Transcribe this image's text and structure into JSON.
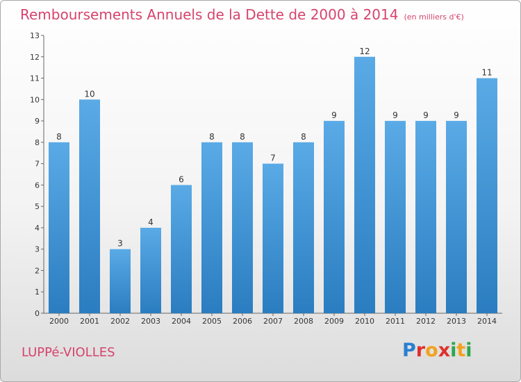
{
  "header": {
    "title": "Remboursements Annuels de la Dette de 2000 à 2014",
    "subtitle": "(en milliers d'€)"
  },
  "footer": {
    "commune": "LUPPé-VIOLLES",
    "logo_text": "Proxiti",
    "logo_colors": [
      "#2a7fd0",
      "#e0302c",
      "#f3a21c",
      "#e0302c",
      "#2ea64a",
      "#f3a21c",
      "#2ea64a"
    ]
  },
  "colors": {
    "bar_light": "#5aaae6",
    "bar_dark": "#2a7dc0",
    "title": "#d6436e"
  },
  "chart_data": {
    "type": "bar",
    "title": "Remboursements Annuels de la Dette de 2000 à 2014",
    "categories": [
      "2000",
      "2001",
      "2002",
      "2003",
      "2004",
      "2005",
      "2006",
      "2007",
      "2008",
      "2009",
      "2010",
      "2011",
      "2012",
      "2013",
      "2014"
    ],
    "values": [
      8,
      10,
      3,
      4,
      6,
      8,
      8,
      7,
      8,
      9,
      12,
      9,
      9,
      9,
      11
    ],
    "xlabel": "",
    "ylabel": "",
    "ylim": [
      0,
      13
    ],
    "yticks": [
      0,
      1,
      2,
      3,
      4,
      5,
      6,
      7,
      8,
      9,
      10,
      11,
      12,
      13
    ],
    "grid": false
  }
}
